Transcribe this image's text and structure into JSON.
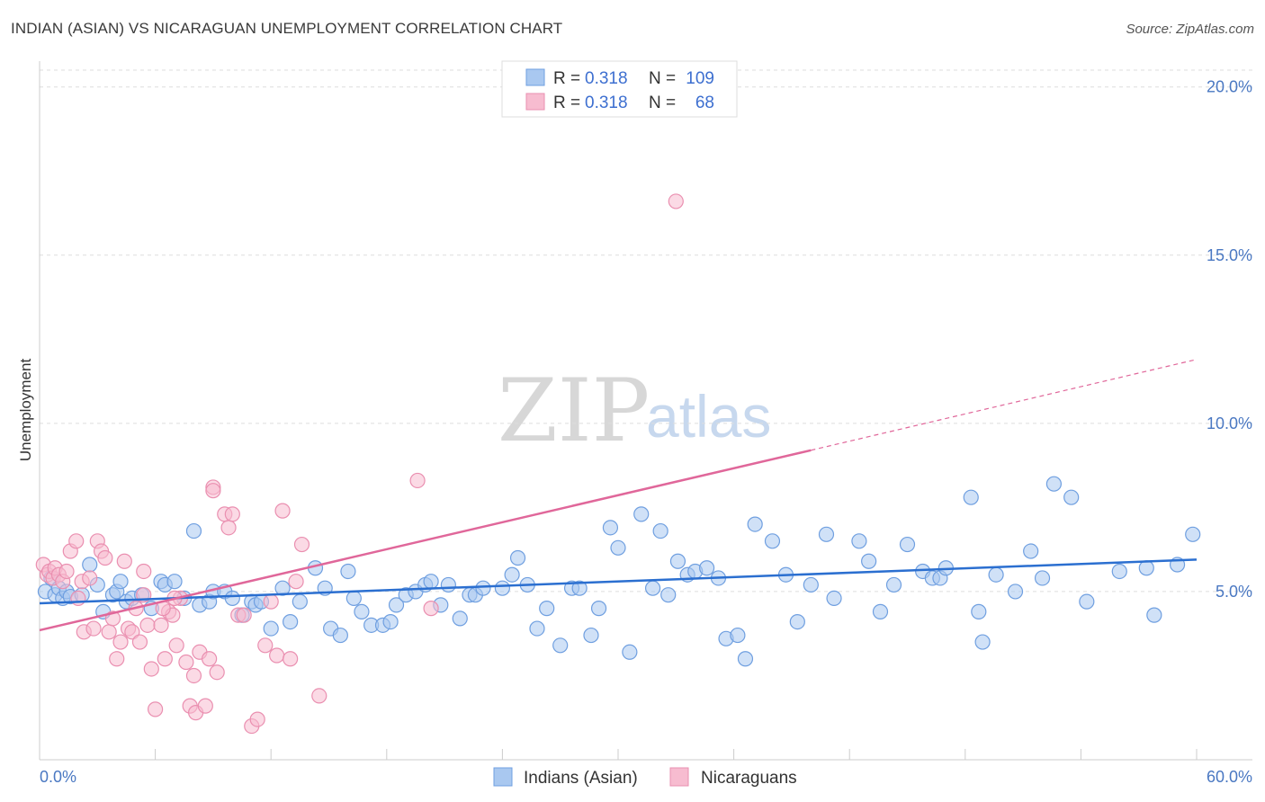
{
  "header": {
    "title": "INDIAN (ASIAN) VS NICARAGUAN UNEMPLOYMENT CORRELATION CHART",
    "source": "Source: ZipAtlas.com"
  },
  "watermark": {
    "zip": "ZIP",
    "atlas": "atlas"
  },
  "legend": {
    "rows": [
      {
        "r_label": "R =",
        "r_value": "0.318",
        "n_label": "N =",
        "n_value": "109"
      },
      {
        "r_label": "R =",
        "r_value": "0.318",
        "n_label": "N =",
        "n_value": "68"
      }
    ]
  },
  "colors": {
    "blue_fill": "#a9c8f0",
    "blue_stroke": "#6f9fe0",
    "blue_line": "#2b6fd0",
    "pink_fill": "#f7bcd0",
    "pink_stroke": "#ea8fb0",
    "pink_line": "#e0679a",
    "tick_text": "#4a78c2",
    "grid": "#dddddd"
  },
  "chart_data": {
    "type": "scatter",
    "title": "INDIAN (ASIAN) VS NICARAGUAN UNEMPLOYMENT CORRELATION CHART",
    "xlabel": "",
    "ylabel": "Unemployment",
    "xlim": [
      0,
      60
    ],
    "ylim": [
      0,
      20.5
    ],
    "x_tick_labels": [
      "0.0%",
      "60.0%"
    ],
    "y_ticks": [
      5,
      10,
      15,
      20
    ],
    "y_tick_labels": [
      "5.0%",
      "10.0%",
      "15.0%",
      "20.0%"
    ],
    "grid": "horizontal dashed",
    "legend_position": "top-center",
    "series": [
      {
        "name": "Indians (Asian)",
        "color": "#a9c8f0",
        "trend": {
          "x": [
            0,
            60
          ],
          "y": [
            4.65,
            5.95
          ]
        },
        "points": [
          [
            0.3,
            5.0
          ],
          [
            0.6,
            5.4
          ],
          [
            0.8,
            4.9
          ],
          [
            1.0,
            5.1
          ],
          [
            1.2,
            4.8
          ],
          [
            1.4,
            5.0
          ],
          [
            1.6,
            4.85
          ],
          [
            2.2,
            4.9
          ],
          [
            2.6,
            5.8
          ],
          [
            3.0,
            5.2
          ],
          [
            3.3,
            4.4
          ],
          [
            3.8,
            4.9
          ],
          [
            4.0,
            5.0
          ],
          [
            4.2,
            5.3
          ],
          [
            4.5,
            4.7
          ],
          [
            4.8,
            4.8
          ],
          [
            5.3,
            4.9
          ],
          [
            5.8,
            4.5
          ],
          [
            6.3,
            5.3
          ],
          [
            6.5,
            5.2
          ],
          [
            7.0,
            5.3
          ],
          [
            7.5,
            4.8
          ],
          [
            8.0,
            6.8
          ],
          [
            8.3,
            4.6
          ],
          [
            8.8,
            4.7
          ],
          [
            9.0,
            5.0
          ],
          [
            9.6,
            5.0
          ],
          [
            10.0,
            4.8
          ],
          [
            10.5,
            4.3
          ],
          [
            11.0,
            4.7
          ],
          [
            11.2,
            4.6
          ],
          [
            11.5,
            4.7
          ],
          [
            12.0,
            3.9
          ],
          [
            12.6,
            5.1
          ],
          [
            13.0,
            4.1
          ],
          [
            13.5,
            4.7
          ],
          [
            14.3,
            5.7
          ],
          [
            14.8,
            5.1
          ],
          [
            15.1,
            3.9
          ],
          [
            15.6,
            3.7
          ],
          [
            16.0,
            5.6
          ],
          [
            16.3,
            4.8
          ],
          [
            16.7,
            4.4
          ],
          [
            17.2,
            4.0
          ],
          [
            17.8,
            4.0
          ],
          [
            18.2,
            4.1
          ],
          [
            18.5,
            4.6
          ],
          [
            19.0,
            4.9
          ],
          [
            19.5,
            5.0
          ],
          [
            20.0,
            5.2
          ],
          [
            20.3,
            5.3
          ],
          [
            20.8,
            4.6
          ],
          [
            21.2,
            5.2
          ],
          [
            21.8,
            4.2
          ],
          [
            22.3,
            4.9
          ],
          [
            22.6,
            4.9
          ],
          [
            23.0,
            5.1
          ],
          [
            24.0,
            5.1
          ],
          [
            24.5,
            5.5
          ],
          [
            24.8,
            6.0
          ],
          [
            25.3,
            5.2
          ],
          [
            25.8,
            3.9
          ],
          [
            26.3,
            4.5
          ],
          [
            27.0,
            3.4
          ],
          [
            27.6,
            5.1
          ],
          [
            28.0,
            5.1
          ],
          [
            28.6,
            3.7
          ],
          [
            29.0,
            4.5
          ],
          [
            29.6,
            6.9
          ],
          [
            30.0,
            6.3
          ],
          [
            30.6,
            3.2
          ],
          [
            31.2,
            7.3
          ],
          [
            31.8,
            5.1
          ],
          [
            32.2,
            6.8
          ],
          [
            32.6,
            4.9
          ],
          [
            33.1,
            5.9
          ],
          [
            33.6,
            5.5
          ],
          [
            34.0,
            5.6
          ],
          [
            34.6,
            5.7
          ],
          [
            35.2,
            5.4
          ],
          [
            35.6,
            3.6
          ],
          [
            36.2,
            3.7
          ],
          [
            36.6,
            3.0
          ],
          [
            37.1,
            7.0
          ],
          [
            38.0,
            6.5
          ],
          [
            38.7,
            5.5
          ],
          [
            39.3,
            4.1
          ],
          [
            40.0,
            5.2
          ],
          [
            40.8,
            6.7
          ],
          [
            41.2,
            4.8
          ],
          [
            42.5,
            6.5
          ],
          [
            43.0,
            5.9
          ],
          [
            43.6,
            4.4
          ],
          [
            44.3,
            5.2
          ],
          [
            45.0,
            6.4
          ],
          [
            45.8,
            5.6
          ],
          [
            46.3,
            5.4
          ],
          [
            46.7,
            5.4
          ],
          [
            47.0,
            5.7
          ],
          [
            48.3,
            7.8
          ],
          [
            48.7,
            4.4
          ],
          [
            48.9,
            3.5
          ],
          [
            49.6,
            5.5
          ],
          [
            50.6,
            5.0
          ],
          [
            51.4,
            6.2
          ],
          [
            52.0,
            5.4
          ],
          [
            52.6,
            8.2
          ],
          [
            53.5,
            7.8
          ],
          [
            54.3,
            4.7
          ],
          [
            56.0,
            5.6
          ],
          [
            57.4,
            5.7
          ],
          [
            59.0,
            5.8
          ],
          [
            57.8,
            4.3
          ],
          [
            59.8,
            6.7
          ]
        ]
      },
      {
        "name": "Nicaraguans",
        "color": "#f7bcd0",
        "trend": {
          "x": [
            0,
            40
          ],
          "y": [
            3.85,
            9.2
          ]
        },
        "trend_dashed": {
          "x": [
            40,
            60
          ],
          "y": [
            9.2,
            11.9
          ]
        },
        "points": [
          [
            0.2,
            5.8
          ],
          [
            0.4,
            5.5
          ],
          [
            0.5,
            5.6
          ],
          [
            0.7,
            5.4
          ],
          [
            0.8,
            5.7
          ],
          [
            1.0,
            5.5
          ],
          [
            1.2,
            5.3
          ],
          [
            1.4,
            5.6
          ],
          [
            1.6,
            6.2
          ],
          [
            1.9,
            6.5
          ],
          [
            2.2,
            5.3
          ],
          [
            2.3,
            3.8
          ],
          [
            2.6,
            5.4
          ],
          [
            2.8,
            3.9
          ],
          [
            3.0,
            6.5
          ],
          [
            3.2,
            6.2
          ],
          [
            3.4,
            6.0
          ],
          [
            3.6,
            3.8
          ],
          [
            3.8,
            4.2
          ],
          [
            4.0,
            3.0
          ],
          [
            4.2,
            3.5
          ],
          [
            4.4,
            5.9
          ],
          [
            4.6,
            3.9
          ],
          [
            4.8,
            3.8
          ],
          [
            5.0,
            4.5
          ],
          [
            5.2,
            3.5
          ],
          [
            5.4,
            4.9
          ],
          [
            5.6,
            4.0
          ],
          [
            5.8,
            2.7
          ],
          [
            6.0,
            1.5
          ],
          [
            6.3,
            4.0
          ],
          [
            6.5,
            3.0
          ],
          [
            6.7,
            4.4
          ],
          [
            6.9,
            4.3
          ],
          [
            7.1,
            3.4
          ],
          [
            7.3,
            4.8
          ],
          [
            7.6,
            2.9
          ],
          [
            7.8,
            1.6
          ],
          [
            8.0,
            2.5
          ],
          [
            8.1,
            1.4
          ],
          [
            8.3,
            3.2
          ],
          [
            8.6,
            1.6
          ],
          [
            8.8,
            3.0
          ],
          [
            9.0,
            8.1
          ],
          [
            9.2,
            2.6
          ],
          [
            9.6,
            7.3
          ],
          [
            9.8,
            6.9
          ],
          [
            10.0,
            7.3
          ],
          [
            10.3,
            4.3
          ],
          [
            10.6,
            4.3
          ],
          [
            11.0,
            1.0
          ],
          [
            11.3,
            1.2
          ],
          [
            11.7,
            3.4
          ],
          [
            12.0,
            4.7
          ],
          [
            12.3,
            3.1
          ],
          [
            12.6,
            7.4
          ],
          [
            13.0,
            3.0
          ],
          [
            13.3,
            5.3
          ],
          [
            13.6,
            6.4
          ],
          [
            14.5,
            1.9
          ],
          [
            19.6,
            8.3
          ],
          [
            20.3,
            4.5
          ],
          [
            33.0,
            16.6
          ],
          [
            5.4,
            5.6
          ],
          [
            9.0,
            8.0
          ],
          [
            2.0,
            4.8
          ],
          [
            6.4,
            4.5
          ],
          [
            7.0,
            4.8
          ]
        ]
      }
    ]
  }
}
